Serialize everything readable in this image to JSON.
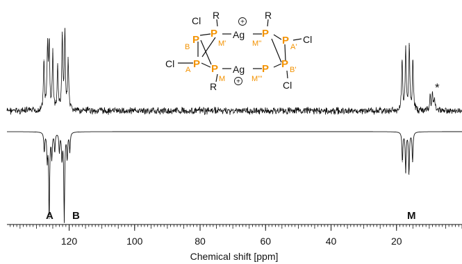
{
  "chart_data": {
    "type": "line",
    "xlabel": "Chemical shift [ppm]",
    "xlim": [
      139,
      0
    ],
    "x_ticks": [
      120,
      100,
      80,
      60,
      40,
      20
    ],
    "series": [
      {
        "role": "experimental",
        "peaks": [
          {
            "x": 127.7,
            "height": 0.62
          },
          {
            "x": 126.6,
            "height": 0.78
          },
          {
            "x": 126.1,
            "height": 0.82
          },
          {
            "x": 125.0,
            "height": 0.7
          },
          {
            "x": 123.5,
            "height": 0.55
          },
          {
            "x": 122.1,
            "height": 0.92
          },
          {
            "x": 121.3,
            "height": 1.0
          },
          {
            "x": 120.3,
            "height": 0.62
          },
          {
            "x": 18.3,
            "height": 0.62
          },
          {
            "x": 17.2,
            "height": 0.78
          },
          {
            "x": 16.1,
            "height": 0.8
          },
          {
            "x": 15.0,
            "height": 0.62
          },
          {
            "x": 9.7,
            "height": 0.18
          },
          {
            "x": 9.0,
            "height": 0.22
          },
          {
            "x": 8.4,
            "height": 0.16
          }
        ]
      },
      {
        "role": "simulated",
        "peaks": [
          {
            "x": 127.6,
            "height": 0.22
          },
          {
            "x": 126.7,
            "height": 0.3
          },
          {
            "x": 126.1,
            "height": 0.98
          },
          {
            "x": 125.3,
            "height": 0.28
          },
          {
            "x": 124.4,
            "height": 0.22
          },
          {
            "x": 123.0,
            "height": 0.22
          },
          {
            "x": 122.2,
            "height": 0.3
          },
          {
            "x": 121.5,
            "height": 1.0
          },
          {
            "x": 120.6,
            "height": 0.3
          },
          {
            "x": 119.8,
            "height": 0.22
          },
          {
            "x": 18.2,
            "height": 0.34
          },
          {
            "x": 17.2,
            "height": 0.45
          },
          {
            "x": 16.2,
            "height": 0.48
          },
          {
            "x": 15.1,
            "height": 0.34
          }
        ]
      }
    ],
    "annotations": {
      "peak_A": "A",
      "peak_B": "B",
      "peak_M": "M",
      "impurity": "*"
    }
  },
  "structure": {
    "R": "R",
    "Cl": "Cl",
    "Ag": "Ag",
    "P": "P",
    "charge": "+",
    "label_B": "B",
    "label_A": "A",
    "label_M": "M",
    "label_M1": "M'",
    "label_M2": "M''",
    "label_M3": "M'''",
    "label_A1": "A'",
    "label_B1": "B'"
  },
  "colors": {
    "trace": "#111111",
    "phosphorus": "#f39200"
  }
}
